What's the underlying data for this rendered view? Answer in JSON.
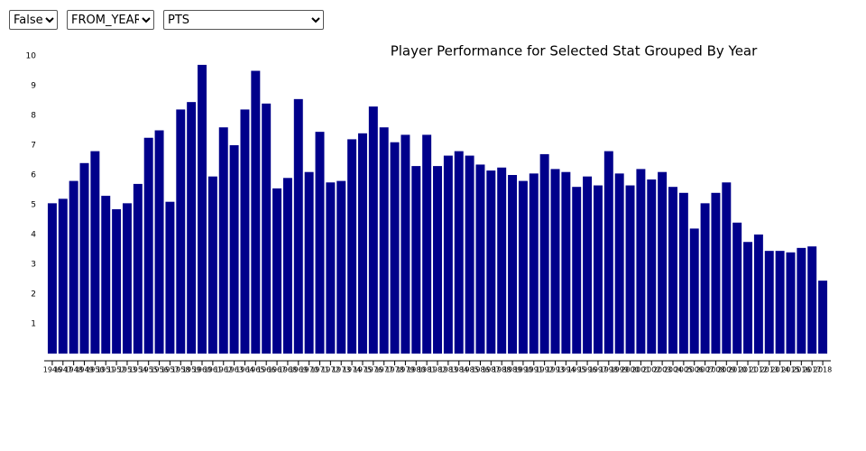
{
  "controls": [
    "False",
    "FROM_YEAR",
    "PTS"
  ],
  "chart_data": {
    "type": "bar",
    "title": "Player Performance for Selected Stat Grouped By Year",
    "categories": [
      "1946",
      "1947",
      "1948",
      "1949",
      "1950",
      "1951",
      "1952",
      "1953",
      "1954",
      "1955",
      "1956",
      "1957",
      "1958",
      "1959",
      "1960",
      "1961",
      "1962",
      "1963",
      "1964",
      "1965",
      "1966",
      "1967",
      "1968",
      "1969",
      "1970",
      "1971",
      "1972",
      "1973",
      "1974",
      "1975",
      "1976",
      "1977",
      "1978",
      "1979",
      "1980",
      "1981",
      "1982",
      "1983",
      "1984",
      "1985",
      "1986",
      "1987",
      "1988",
      "1989",
      "1990",
      "1991",
      "1992",
      "1993",
      "1994",
      "1995",
      "1996",
      "1997",
      "1998",
      "1999",
      "2000",
      "2001",
      "2002",
      "2003",
      "2004",
      "2005",
      "2006",
      "2007",
      "2008",
      "2009",
      "2010",
      "2011",
      "2012",
      "2013",
      "2014",
      "2015",
      "2016",
      "2017",
      "2018"
    ],
    "values": [
      5.05,
      5.2,
      5.8,
      6.4,
      6.8,
      5.3,
      4.85,
      5.05,
      5.7,
      7.25,
      7.5,
      5.1,
      8.2,
      8.45,
      9.7,
      5.95,
      7.6,
      7.0,
      8.2,
      9.5,
      8.4,
      5.55,
      5.9,
      8.55,
      6.1,
      7.45,
      5.75,
      5.8,
      7.2,
      7.4,
      8.3,
      7.6,
      7.1,
      7.35,
      6.3,
      7.35,
      6.3,
      6.65,
      6.8,
      6.65,
      6.35,
      6.15,
      6.25,
      6.0,
      5.8,
      6.05,
      6.7,
      6.2,
      6.1,
      5.6,
      5.95,
      5.65,
      6.8,
      6.05,
      5.65,
      6.2,
      5.85,
      6.1,
      5.6,
      5.4,
      4.2,
      5.05,
      5.4,
      5.75,
      4.4,
      3.75,
      4.0,
      3.45,
      3.45,
      3.4,
      3.55,
      3.6,
      2.45
    ],
    "color": "#00008b",
    "ylim": [
      0,
      10
    ],
    "yticks": [
      1,
      2,
      3,
      4,
      5,
      6,
      7,
      8,
      9,
      10
    ],
    "grid": false
  }
}
